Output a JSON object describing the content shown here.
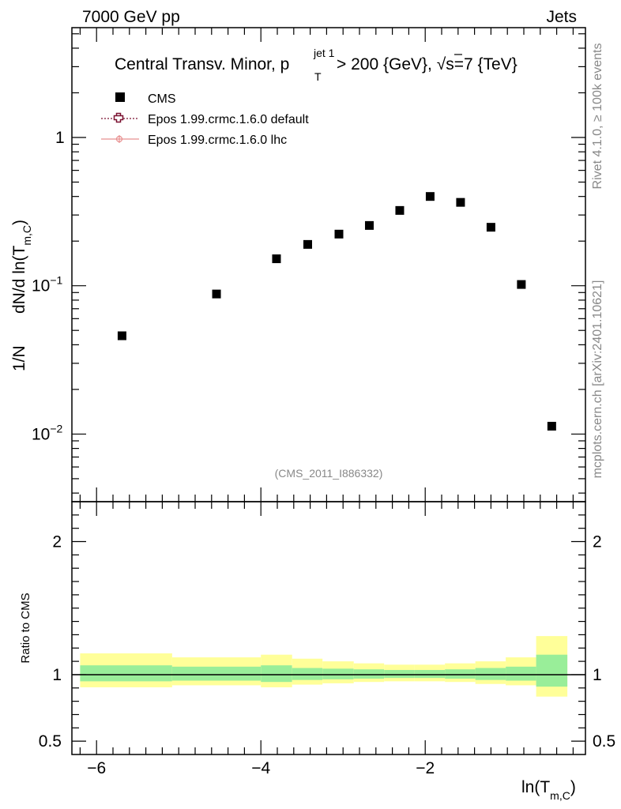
{
  "header": {
    "left": "7000 GeV pp",
    "right": "Jets"
  },
  "side_text": {
    "rivet": "Rivet 4.1.0, ≥ 100k events",
    "mcplots": "mcplots.cern.ch [arXiv:2401.10621]"
  },
  "colors": {
    "data": "#000000",
    "epos_default": "#7a1030",
    "epos_lhc": "#e89090",
    "band_inner": "#99ee99",
    "band_outer": "#ffff99",
    "watermark": "#888888"
  },
  "chart_data": [
    {
      "type": "scatter",
      "panel": "main",
      "title_parts": {
        "prefix": "Central Transv. Minor, p",
        "sup": "jet 1",
        "sub": "T",
        "suffix": " > 200 {GeV}, ",
        "sqrt": "√",
        "s_text": "s=7 {TeV}"
      },
      "ylabel": {
        "left": "1/N",
        "main": "dN/d ln(T",
        "sub": "m,C",
        "close": ")"
      },
      "yscale": "log",
      "ylim": [
        0.0035,
        5.5
      ],
      "xlim": [
        -6.3,
        -0.05
      ],
      "yticks": [
        {
          "value": 0.01,
          "base": "10",
          "exp": "−2"
        },
        {
          "value": 0.1,
          "base": "10",
          "exp": "−1"
        },
        {
          "value": 1,
          "base": "1",
          "exp": ""
        }
      ],
      "watermark": "(CMS_2011_I886332)",
      "legend": [
        {
          "label": "CMS",
          "marker": "square"
        },
        {
          "label": "Epos 1.99.crmc.1.6.0 default",
          "marker": "open-cross"
        },
        {
          "label": "Epos 1.99.crmc.1.6.0 lhc",
          "marker": "circle-cross"
        }
      ],
      "series": [
        {
          "name": "CMS",
          "x": [
            -5.69,
            -4.54,
            -3.81,
            -3.43,
            -3.05,
            -2.68,
            -2.31,
            -1.94,
            -1.57,
            -1.2,
            -0.83,
            -0.46
          ],
          "y": [
            0.046,
            0.088,
            0.152,
            0.19,
            0.223,
            0.255,
            0.322,
            0.4,
            0.365,
            0.248,
            0.102,
            0.0113
          ]
        }
      ]
    },
    {
      "type": "area",
      "panel": "ratio",
      "ylabel": "Ratio to CMS",
      "xlabel": {
        "main": "ln(T",
        "sub": "m,C",
        "close": ")"
      },
      "ylim": [
        0.4,
        2.3
      ],
      "yticks": [
        {
          "value": 0.5,
          "label": "0.5"
        },
        {
          "value": 1,
          "label": "1"
        },
        {
          "value": 2,
          "label": "2"
        }
      ],
      "xticks": [
        {
          "value": -6,
          "label": "−6"
        },
        {
          "value": -4,
          "label": "−4"
        },
        {
          "value": -2,
          "label": "−2"
        }
      ],
      "bins": [
        {
          "lo": -6.2,
          "hi": -5.08,
          "inner": [
            0.95,
            1.07
          ],
          "outer": [
            0.905,
            1.16
          ]
        },
        {
          "lo": -5.08,
          "hi": -4.0,
          "inner": [
            0.955,
            1.06
          ],
          "outer": [
            0.92,
            1.13
          ]
        },
        {
          "lo": -4.0,
          "hi": -3.62,
          "inner": [
            0.945,
            1.07
          ],
          "outer": [
            0.905,
            1.15
          ]
        },
        {
          "lo": -3.62,
          "hi": -3.25,
          "inner": [
            0.96,
            1.05
          ],
          "outer": [
            0.925,
            1.12
          ]
        },
        {
          "lo": -3.25,
          "hi": -2.87,
          "inner": [
            0.965,
            1.045
          ],
          "outer": [
            0.935,
            1.1
          ]
        },
        {
          "lo": -2.87,
          "hi": -2.5,
          "inner": [
            0.97,
            1.04
          ],
          "outer": [
            0.945,
            1.085
          ]
        },
        {
          "lo": -2.5,
          "hi": -2.13,
          "inner": [
            0.975,
            1.035
          ],
          "outer": [
            0.95,
            1.075
          ]
        },
        {
          "lo": -2.13,
          "hi": -1.76,
          "inner": [
            0.975,
            1.035
          ],
          "outer": [
            0.95,
            1.075
          ]
        },
        {
          "lo": -1.76,
          "hi": -1.39,
          "inner": [
            0.97,
            1.04
          ],
          "outer": [
            0.945,
            1.085
          ]
        },
        {
          "lo": -1.39,
          "hi": -1.02,
          "inner": [
            0.96,
            1.05
          ],
          "outer": [
            0.93,
            1.1
          ]
        },
        {
          "lo": -1.02,
          "hi": -0.65,
          "inner": [
            0.955,
            1.06
          ],
          "outer": [
            0.92,
            1.13
          ]
        },
        {
          "lo": -0.65,
          "hi": -0.27,
          "inner": [
            0.91,
            1.15
          ],
          "outer": [
            0.835,
            1.29
          ]
        }
      ]
    }
  ]
}
